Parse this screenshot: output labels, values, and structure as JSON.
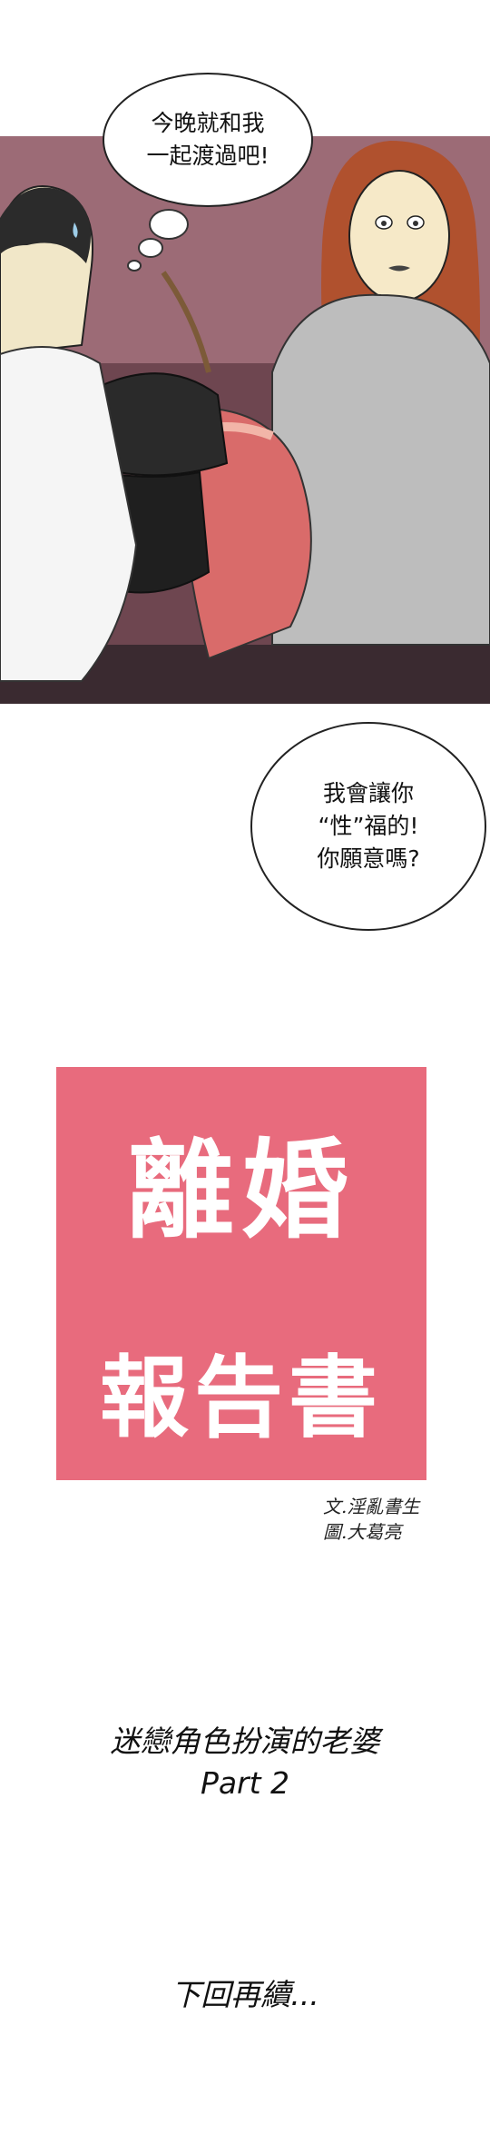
{
  "comic": {
    "bubble1": "今晚就和我\n一起渡過吧!",
    "bubble2": "我會讓你\n“性”福的!\n你願意嗎?",
    "title_main": "離婚",
    "title_sub": "報告書",
    "credits": {
      "writer": "文.淫亂書生",
      "artist": "圖.大葛亮"
    },
    "episode_title": "迷戀角色扮演的老婆",
    "episode_part": "Part 2",
    "to_be_continued": "下回再續..."
  },
  "colors": {
    "title_bg": "#e86b7d",
    "panel_bg": "#9c6b76",
    "title_text": "#ffffff"
  }
}
